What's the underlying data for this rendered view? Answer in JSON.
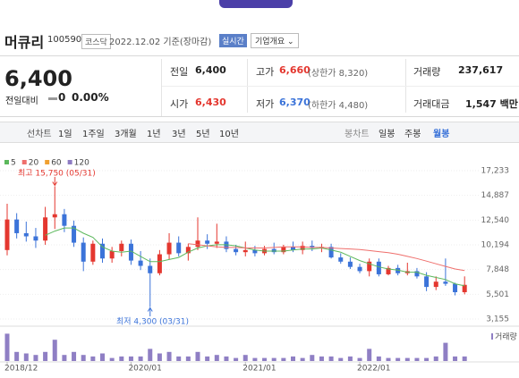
{
  "header": {
    "name": "머큐리",
    "code": "100590",
    "market": "코스닥",
    "date": "2022.12.02 기준(장마감)",
    "realtime": "실시간",
    "company_info": "기업개요"
  },
  "quote": {
    "price": "6,400",
    "change_label": "전일대비",
    "change": "0",
    "change_pct": "0.00%",
    "items": [
      {
        "label": "전일",
        "value": "6,400"
      },
      {
        "label": "고가",
        "value": "6,660",
        "note": "(상한가 8,320)"
      },
      {
        "label": "거래량",
        "value": "237,617"
      },
      {
        "label": "시가",
        "value": "6,430"
      },
      {
        "label": "저가",
        "value": "6,370",
        "note": "(하한가 4,480)"
      },
      {
        "label": "거래대금",
        "value": "1,547 백만"
      }
    ]
  },
  "tabs": {
    "line_label": "선차트",
    "periods": [
      "1일",
      "1주일",
      "3개월",
      "1년",
      "3년",
      "5년",
      "10년"
    ],
    "candle_label": "봉차트",
    "candle_periods": [
      "일봉",
      "주봉",
      "월봉"
    ]
  },
  "chart_data": {
    "type": "candlestick",
    "up_color": "#e4372f",
    "down_color": "#3b73d9",
    "categories": [
      "2018/12",
      null,
      null,
      null,
      null,
      null,
      null,
      null,
      null,
      null,
      null,
      null,
      null,
      "2020/01",
      null,
      null,
      null,
      null,
      null,
      null,
      null,
      null,
      null,
      null,
      null,
      "2021/01",
      null,
      null,
      null,
      null,
      null,
      null,
      null,
      null,
      null,
      null,
      null,
      "2022/01",
      null,
      null,
      null,
      null,
      null,
      null,
      null,
      null,
      null,
      null,
      null
    ],
    "open": [
      9700,
      12600,
      11300,
      11000,
      10600,
      12800,
      13100,
      12000,
      10400,
      8600,
      10300,
      8900,
      9600,
      10300,
      8700,
      8200,
      7500,
      9300,
      10400,
      9400,
      10000,
      10600,
      10300,
      10500,
      9800,
      9500,
      9700,
      9400,
      9800,
      9500,
      10000,
      9700,
      10100,
      9900,
      10000,
      9000,
      8600,
      8100,
      7700,
      8600,
      7400,
      8000,
      7500,
      7700,
      7200,
      6200,
      6700,
      6500,
      5700
    ],
    "high": [
      14100,
      13200,
      12400,
      11800,
      13800,
      15750,
      13600,
      12500,
      10900,
      10600,
      10800,
      10000,
      10600,
      10700,
      9600,
      8900,
      9700,
      11300,
      11000,
      10300,
      12800,
      11200,
      12200,
      11000,
      10200,
      10500,
      10100,
      10100,
      10400,
      10200,
      10500,
      10500,
      10600,
      10300,
      10300,
      9400,
      9000,
      8400,
      8900,
      8900,
      8200,
      8300,
      8500,
      8000,
      7600,
      7200,
      8900,
      6600,
      7200
    ],
    "low": [
      9200,
      10800,
      10500,
      9900,
      10200,
      11700,
      11400,
      10000,
      7700,
      8300,
      8500,
      8500,
      9100,
      8300,
      7800,
      4300,
      7300,
      8800,
      9100,
      8700,
      9700,
      9800,
      9900,
      9500,
      9200,
      9100,
      9100,
      9200,
      9300,
      9300,
      9500,
      9300,
      9600,
      9500,
      8900,
      8400,
      7900,
      7500,
      7200,
      7200,
      7300,
      7300,
      7300,
      7000,
      5800,
      5900,
      6300,
      5400,
      5500
    ],
    "close": [
      12600,
      11300,
      11000,
      10600,
      12800,
      13100,
      12000,
      10400,
      8600,
      10300,
      8900,
      9600,
      10300,
      8700,
      8200,
      7500,
      9300,
      10400,
      9400,
      10000,
      10600,
      10300,
      10500,
      9800,
      9500,
      9700,
      9400,
      9800,
      9500,
      10000,
      9700,
      10100,
      9900,
      10000,
      9000,
      8600,
      8100,
      7700,
      8600,
      7400,
      8000,
      7500,
      7700,
      7200,
      6200,
      6700,
      6500,
      5700,
      6400
    ],
    "series": [
      {
        "name": "5",
        "color": "#5cb85c",
        "values": [
          null,
          null,
          null,
          null,
          11100,
          11500,
          11800,
          11800,
          11300,
          10900,
          10000,
          9600,
          9500,
          9600,
          9100,
          8600,
          8600,
          8800,
          9000,
          9500,
          9900,
          10100,
          10200,
          10200,
          10100,
          9900,
          9700,
          9600,
          9600,
          9600,
          9700,
          9800,
          9800,
          9900,
          9700,
          9500,
          9100,
          8700,
          8400,
          8100,
          7900,
          7800,
          7600,
          7600,
          7300,
          7100,
          6900,
          6500,
          6300
        ]
      },
      {
        "name": "20",
        "color": "#ef6f6c",
        "values": [
          null,
          null,
          null,
          null,
          null,
          null,
          null,
          null,
          null,
          null,
          null,
          null,
          null,
          null,
          null,
          null,
          null,
          null,
          null,
          10300,
          10200,
          10100,
          10000,
          9950,
          9950,
          9900,
          9900,
          9900,
          9950,
          10000,
          10000,
          10000,
          9950,
          9950,
          9900,
          9850,
          9800,
          9750,
          9650,
          9550,
          9450,
          9300,
          9100,
          8900,
          8650,
          8400,
          8150,
          7900,
          7750
        ]
      },
      {
        "name": "60",
        "color": "#f0a030"
      },
      {
        "name": "120",
        "color": "#8e7cc3"
      }
    ],
    "ylim": [
      3155,
      17233
    ],
    "yticks": [
      {
        "value": 3155,
        "label": "3,155"
      },
      {
        "value": 5501,
        "label": "5,501"
      },
      {
        "value": 7848,
        "label": "7,848"
      },
      {
        "value": 10194,
        "label": "10,194"
      },
      {
        "value": 12540,
        "label": "12,540"
      },
      {
        "value": 14887,
        "label": "14,887"
      },
      {
        "value": 17233,
        "label": "17,233"
      }
    ],
    "grid": true,
    "volume": {
      "name": "거래량",
      "color": "#8f7fc4",
      "values": [
        9,
        3,
        2.5,
        2,
        3,
        7,
        2,
        3,
        2,
        1.5,
        2.5,
        1,
        1.5,
        1.5,
        1.5,
        4,
        2.5,
        3,
        1.5,
        1.5,
        3,
        1.5,
        2,
        1.5,
        1,
        2,
        1,
        1,
        1,
        1,
        1.5,
        1,
        2,
        1.5,
        1.5,
        1,
        1.5,
        1,
        4,
        1.5,
        1,
        1,
        1,
        1,
        1,
        1.5,
        6,
        1.5,
        1.5
      ],
      "lim": [
        0,
        10
      ]
    },
    "annotations": {
      "high_label": "최고 15,750 (05/31)",
      "low_label": "최저 4,300 (03/31)"
    }
  }
}
